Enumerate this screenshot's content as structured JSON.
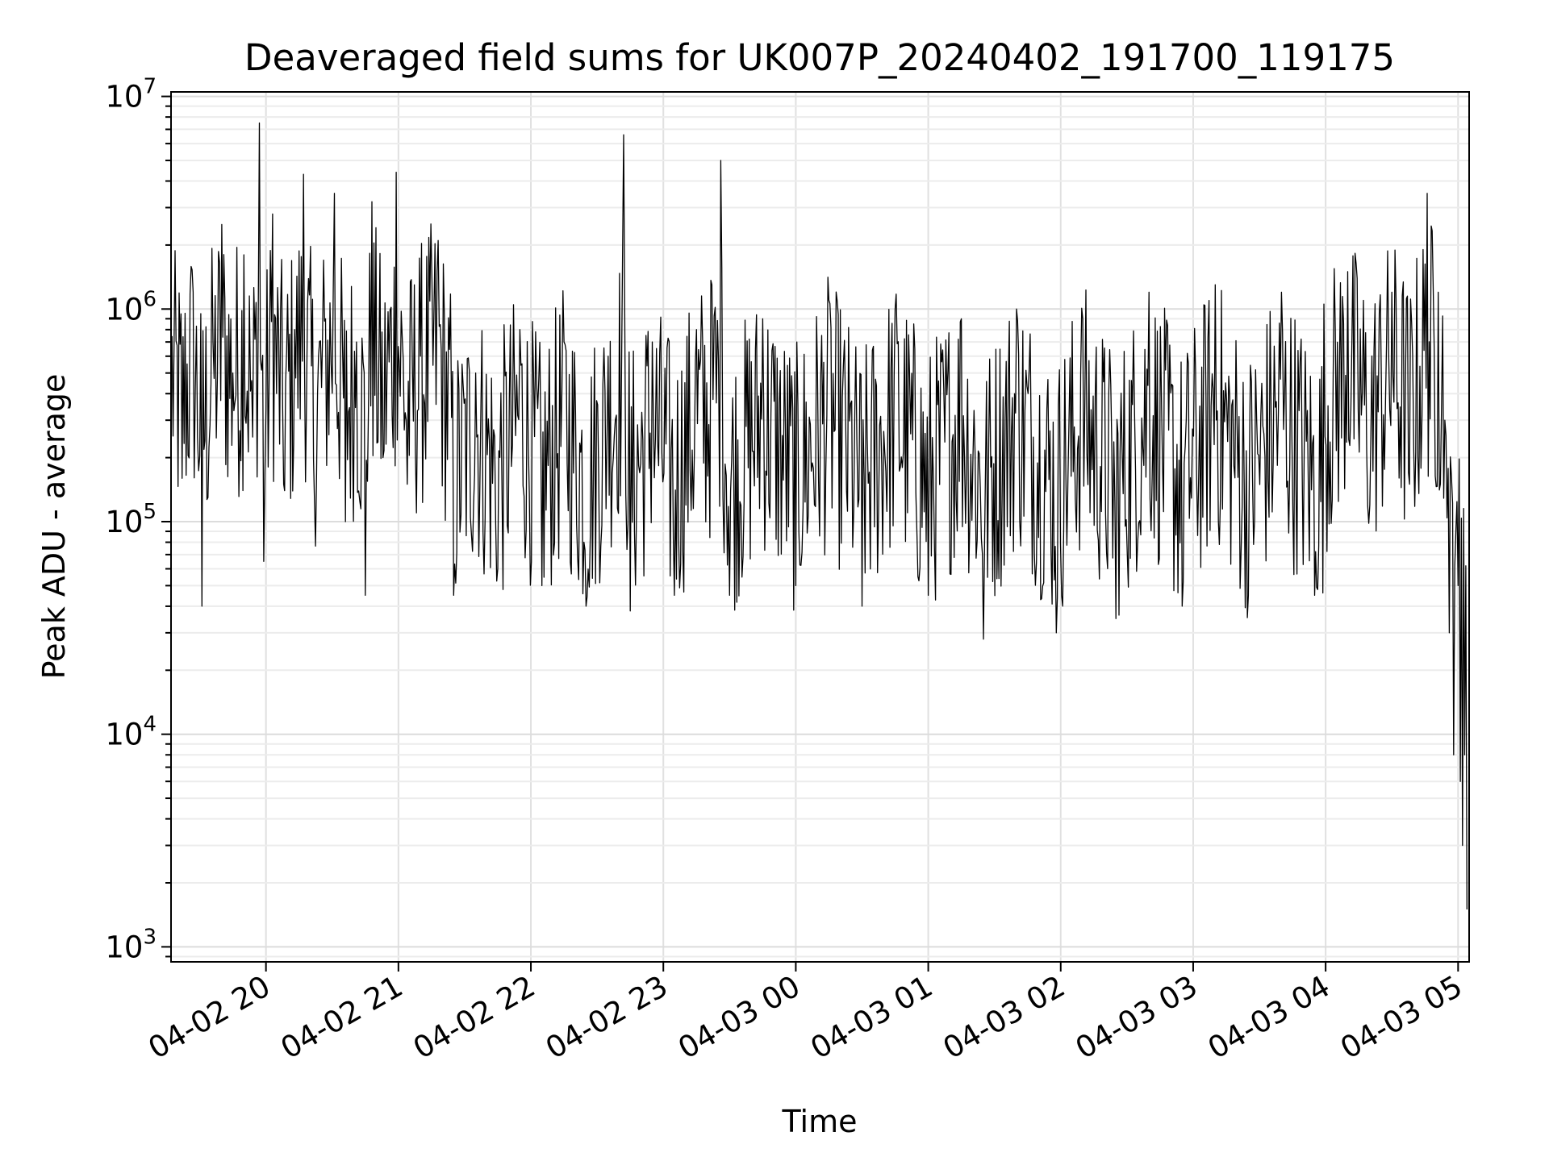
{
  "chart_data": {
    "type": "line",
    "title": "Deaveraged field sums for UK007P_20240402_191700_119175",
    "xlabel": "Time",
    "ylabel": "Peak ADU - average",
    "yscale": "log",
    "ylim": [
      850,
      10500000
    ],
    "xlim": [
      "2024-04-02 19:17",
      "2024-04-03 05:05"
    ],
    "grid": true,
    "x_ticks": [
      {
        "value": "2024-04-02 20:00",
        "label": "04-02 20"
      },
      {
        "value": "2024-04-02 21:00",
        "label": "04-02 21"
      },
      {
        "value": "2024-04-02 22:00",
        "label": "04-02 22"
      },
      {
        "value": "2024-04-02 23:00",
        "label": "04-02 23"
      },
      {
        "value": "2024-04-03 00:00",
        "label": "04-03 00"
      },
      {
        "value": "2024-04-03 01:00",
        "label": "04-03 01"
      },
      {
        "value": "2024-04-03 02:00",
        "label": "04-03 02"
      },
      {
        "value": "2024-04-03 03:00",
        "label": "04-03 03"
      },
      {
        "value": "2024-04-03 04:00",
        "label": "04-03 04"
      },
      {
        "value": "2024-04-03 05:00",
        "label": "04-03 05"
      }
    ],
    "y_ticks": [
      {
        "value": 1000,
        "base": "10",
        "exp": "3"
      },
      {
        "value": 10000,
        "base": "10",
        "exp": "4"
      },
      {
        "value": 100000,
        "base": "10",
        "exp": "5"
      },
      {
        "value": 1000000,
        "base": "10",
        "exp": "6"
      },
      {
        "value": 10000000,
        "base": "10",
        "exp": "7"
      }
    ],
    "series": [
      {
        "color": "#000000",
        "points": [
          [
            "2024-04-02 19:17",
            600000
          ],
          [
            "2024-04-02 19:22",
            160000
          ],
          [
            "2024-04-02 19:27",
            1200000
          ],
          [
            "2024-04-02 19:31",
            40000
          ],
          [
            "2024-04-02 19:36",
            700000
          ],
          [
            "2024-04-02 19:40",
            2500000
          ],
          [
            "2024-04-02 19:45",
            500000
          ],
          [
            "2024-04-02 19:50",
            1800000
          ],
          [
            "2024-04-02 19:54",
            250000
          ],
          [
            "2024-04-02 19:57",
            7500000
          ],
          [
            "2024-04-02 19:59",
            65000
          ],
          [
            "2024-04-02 20:03",
            2800000
          ],
          [
            "2024-04-02 20:08",
            150000
          ],
          [
            "2024-04-02 20:13",
            800000
          ],
          [
            "2024-04-02 20:17",
            4300000
          ],
          [
            "2024-04-02 20:22",
            120000
          ],
          [
            "2024-04-02 20:27",
            900000
          ],
          [
            "2024-04-02 20:31",
            3500000
          ],
          [
            "2024-04-02 20:36",
            100000
          ],
          [
            "2024-04-02 20:41",
            700000
          ],
          [
            "2024-04-02 20:45",
            45000
          ],
          [
            "2024-04-02 20:48",
            3200000
          ],
          [
            "2024-04-02 20:53",
            200000
          ],
          [
            "2024-04-02 20:59",
            4400000
          ],
          [
            "2024-04-02 21:04",
            150000
          ],
          [
            "2024-04-02 21:10",
            600000
          ],
          [
            "2024-04-02 21:18",
            2100000
          ],
          [
            "2024-04-02 21:25",
            45000
          ],
          [
            "2024-04-02 21:35",
            500000
          ],
          [
            "2024-04-02 21:45",
            60000
          ],
          [
            "2024-04-02 21:55",
            800000
          ],
          [
            "2024-04-02 22:05",
            50000
          ],
          [
            "2024-04-02 22:15",
            700000
          ],
          [
            "2024-04-02 22:25",
            40000
          ],
          [
            "2024-04-02 22:35",
            600000
          ],
          [
            "2024-04-02 22:42",
            6600000
          ],
          [
            "2024-04-02 22:45",
            38000
          ],
          [
            "2024-04-02 22:55",
            700000
          ],
          [
            "2024-04-02 23:05",
            45000
          ],
          [
            "2024-04-02 23:15",
            800000
          ],
          [
            "2024-04-02 23:22",
            1300000
          ],
          [
            "2024-04-02 23:26",
            5000000
          ],
          [
            "2024-04-02 23:30",
            45000
          ],
          [
            "2024-04-02 23:45",
            900000
          ],
          [
            "2024-04-03 00:00",
            50000
          ],
          [
            "2024-04-03 00:15",
            1100000
          ],
          [
            "2024-04-03 00:30",
            40000
          ],
          [
            "2024-04-03 00:45",
            1000000
          ],
          [
            "2024-04-03 01:00",
            45000
          ],
          [
            "2024-04-03 01:15",
            900000
          ],
          [
            "2024-04-03 01:25",
            28000
          ],
          [
            "2024-04-03 01:40",
            1000000
          ],
          [
            "2024-04-03 01:58",
            30000
          ],
          [
            "2024-04-03 02:10",
            900000
          ],
          [
            "2024-04-03 02:25",
            35000
          ],
          [
            "2024-04-03 02:40",
            1200000
          ],
          [
            "2024-04-03 02:55",
            40000
          ],
          [
            "2024-04-03 03:10",
            1300000
          ],
          [
            "2024-04-03 03:25",
            45000
          ],
          [
            "2024-04-03 03:40",
            1200000
          ],
          [
            "2024-04-03 03:55",
            45000
          ],
          [
            "2024-04-03 04:10",
            1500000
          ],
          [
            "2024-04-03 04:20",
            120000
          ],
          [
            "2024-04-03 04:30",
            1200000
          ],
          [
            "2024-04-03 04:38",
            150000
          ],
          [
            "2024-04-03 04:46",
            3500000
          ],
          [
            "2024-04-03 04:51",
            1200000
          ],
          [
            "2024-04-03 04:54",
            300000
          ],
          [
            "2024-04-03 04:56",
            30000
          ],
          [
            "2024-04-03 04:58",
            8000
          ],
          [
            "2024-04-03 05:00",
            50000
          ],
          [
            "2024-04-03 05:01",
            6000
          ],
          [
            "2024-04-03 05:02",
            3000
          ],
          [
            "2024-04-03 05:03",
            8000
          ],
          [
            "2024-04-03 05:04",
            1500
          ]
        ]
      }
    ]
  }
}
